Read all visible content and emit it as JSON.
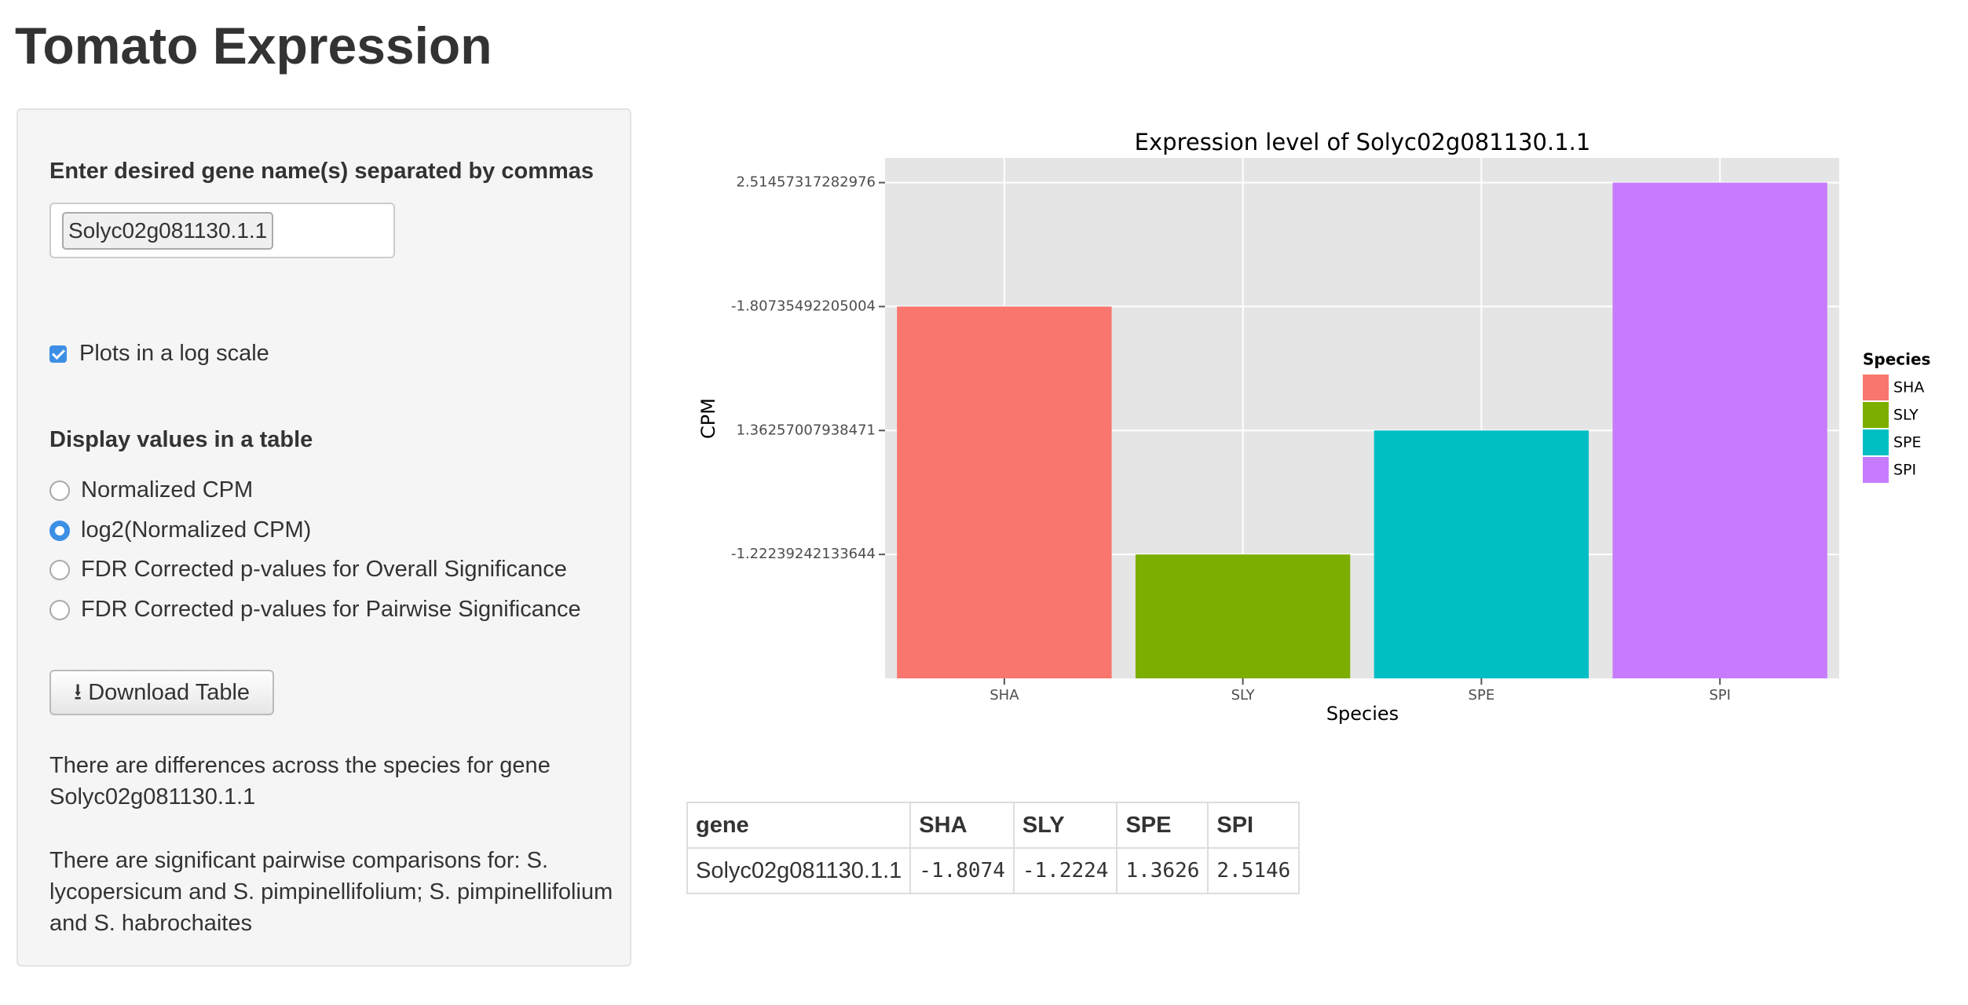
{
  "header": {
    "title": "Tomato Expression"
  },
  "sidebar": {
    "gene_label": "Enter desired gene name(s) separated by commas",
    "gene_input": "Solyc02g081130.1.1",
    "log_checkbox": {
      "label": "Plots in a log scale",
      "checked": true
    },
    "table_label": "Display values in a table",
    "radio_options": [
      "Normalized CPM",
      "log2(Normalized CPM)",
      "FDR Corrected p-values for Overall Significance",
      "FDR Corrected p-values for Pairwise Significance"
    ],
    "selected_option": 1,
    "download_button": "Download Table",
    "messages": [
      "There are differences across the species for gene Solyc02g081130.1.1",
      "There are significant pairwise comparisons for: S. lycopersicum and S. pimpinellifolium; S. pimpinellifolium and S. habrochaites"
    ]
  },
  "chart_data": {
    "type": "bar",
    "title": "Expression level of Solyc02g081130.1.1",
    "x_label": "Species",
    "y_label": "CPM",
    "categories": [
      "SHA",
      "SLY",
      "SPE",
      "SPI"
    ],
    "values": [
      -1.80735492205004,
      -1.22239242133644,
      1.36257007938471,
      2.51457317282976
    ],
    "colors": [
      "#F8766D",
      "#7CAE00",
      "#00BFC4",
      "#C77CFF"
    ],
    "ylevels": [
      -1.22239242133644,
      1.36257007938471,
      -1.80735492205004,
      2.51457317282976
    ],
    "legend_title": "Species",
    "grid": true
  },
  "table": {
    "columns": [
      "gene",
      "SHA",
      "SLY",
      "SPE",
      "SPI"
    ],
    "rows": [
      [
        "Solyc02g081130.1.1",
        -1.8074,
        -1.2224,
        1.3626,
        2.5146
      ]
    ]
  }
}
